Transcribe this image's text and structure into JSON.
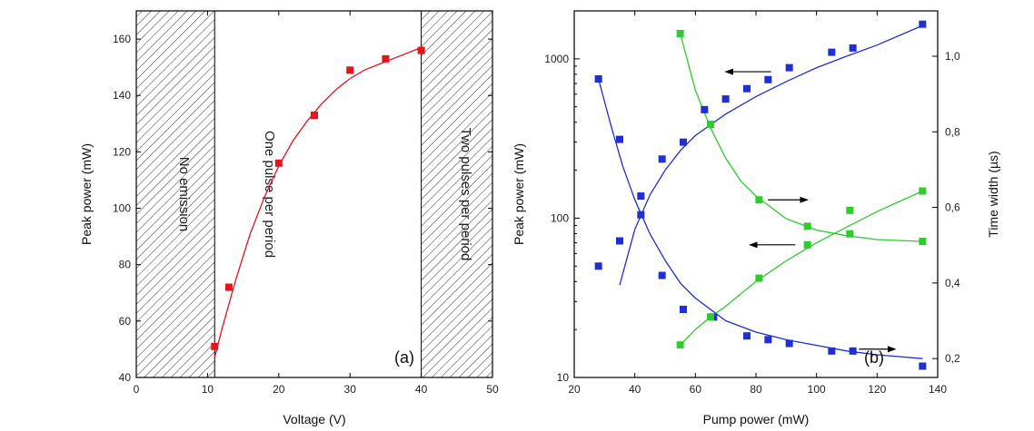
{
  "chart_data": [
    {
      "type": "scatter",
      "panel_label": "(a)",
      "xlabel": "Voltage (V)",
      "ylabel": "Peak power (mW)",
      "xlim": [
        0,
        50
      ],
      "ylim": [
        40,
        170
      ],
      "x_ticks": [
        0,
        10,
        20,
        30,
        40,
        50
      ],
      "y_ticks": [
        40,
        60,
        80,
        100,
        120,
        140,
        160
      ],
      "regions": [
        {
          "label": "No emission",
          "x_range": [
            0,
            11
          ],
          "hatched": true
        },
        {
          "label": "One pulse per period",
          "x_range": [
            11,
            40
          ],
          "hatched": false
        },
        {
          "label": "Two pulses per period",
          "x_range": [
            40,
            50
          ],
          "hatched": true
        }
      ],
      "series": [
        {
          "color": "#e8141c",
          "x": [
            11,
            13,
            20,
            25,
            30,
            35,
            40
          ],
          "y": [
            51,
            72,
            116,
            133,
            149,
            153,
            156
          ]
        }
      ],
      "fit": {
        "color": "#e8141c",
        "x": [
          11,
          12,
          14,
          16,
          18,
          20,
          22,
          24,
          26,
          28,
          30,
          32,
          34,
          36,
          38,
          40
        ],
        "y": [
          47,
          57,
          75,
          91,
          104,
          115,
          124,
          131,
          137,
          142,
          146,
          149,
          151,
          153,
          155,
          157
        ]
      }
    },
    {
      "type": "scatter",
      "panel_label": "(b)",
      "xlabel": "Pump power (mW)",
      "ylabel": "Peak power (mW)",
      "y2label": "Time width (µs)",
      "xlim": [
        20,
        140
      ],
      "ylim": [
        10,
        2000
      ],
      "yscale": "log",
      "y2lim": [
        0.15,
        1.12
      ],
      "x_ticks": [
        20,
        40,
        60,
        80,
        100,
        120,
        140
      ],
      "y_ticks": [
        10,
        100,
        1000
      ],
      "y2_ticks": [
        "0,2",
        "0,4",
        "0,6",
        "0,8",
        "1,0"
      ],
      "y2_tick_values": [
        0.2,
        0.4,
        0.6,
        0.8,
        1.0
      ],
      "series": [
        {
          "color": "#1f2fd6",
          "axis": "left",
          "x": [
            28,
            35,
            42,
            49,
            56,
            63,
            70,
            77,
            84,
            91,
            105,
            112,
            135
          ],
          "y": [
            50,
            72,
            105,
            235,
            300,
            480,
            560,
            650,
            740,
            880,
            1100,
            1170,
            1650
          ]
        },
        {
          "color": "#1f2fd6",
          "axis": "right",
          "x": [
            28,
            35,
            42,
            49,
            56,
            66,
            77,
            84,
            91,
            105,
            112,
            135
          ],
          "y": [
            0.94,
            0.78,
            0.63,
            0.42,
            0.33,
            0.31,
            0.26,
            0.25,
            0.24,
            0.22,
            0.22,
            0.18
          ]
        },
        {
          "color": "#2ecc2e",
          "axis": "left",
          "x": [
            55,
            65,
            81,
            97,
            111,
            135
          ],
          "y": [
            16,
            24,
            42,
            68,
            112,
            148
          ]
        },
        {
          "color": "#2ecc2e",
          "axis": "right",
          "x": [
            55,
            65,
            81,
            97,
            111,
            135
          ],
          "y": [
            1.06,
            0.82,
            0.62,
            0.55,
            0.53,
            0.51
          ]
        }
      ],
      "fits": [
        {
          "color": "#1f2fd6",
          "axis": "left",
          "x": [
            35,
            40,
            45,
            50,
            55,
            60,
            70,
            80,
            90,
            100,
            110,
            120,
            135
          ],
          "y": [
            38,
            85,
            140,
            200,
            265,
            330,
            450,
            580,
            720,
            880,
            1040,
            1220,
            1620
          ]
        },
        {
          "color": "#1f2fd6",
          "axis": "right",
          "x": [
            28,
            32,
            36,
            40,
            45,
            50,
            55,
            60,
            70,
            80,
            90,
            100,
            110,
            120,
            135
          ],
          "y": [
            0.94,
            0.82,
            0.71,
            0.62,
            0.53,
            0.46,
            0.4,
            0.36,
            0.3,
            0.27,
            0.25,
            0.235,
            0.22,
            0.21,
            0.2
          ]
        },
        {
          "color": "#2ecc2e",
          "axis": "left",
          "x": [
            55,
            60,
            65,
            70,
            80,
            90,
            100,
            110,
            120,
            135
          ],
          "y": [
            16,
            20,
            24,
            28,
            40,
            54,
            70,
            88,
            110,
            148
          ]
        },
        {
          "color": "#2ecc2e",
          "axis": "right",
          "x": [
            55,
            60,
            65,
            70,
            75,
            80,
            90,
            100,
            110,
            120,
            135
          ],
          "y": [
            1.06,
            0.91,
            0.81,
            0.73,
            0.67,
            0.63,
            0.57,
            0.54,
            0.525,
            0.515,
            0.51
          ]
        }
      ]
    }
  ]
}
